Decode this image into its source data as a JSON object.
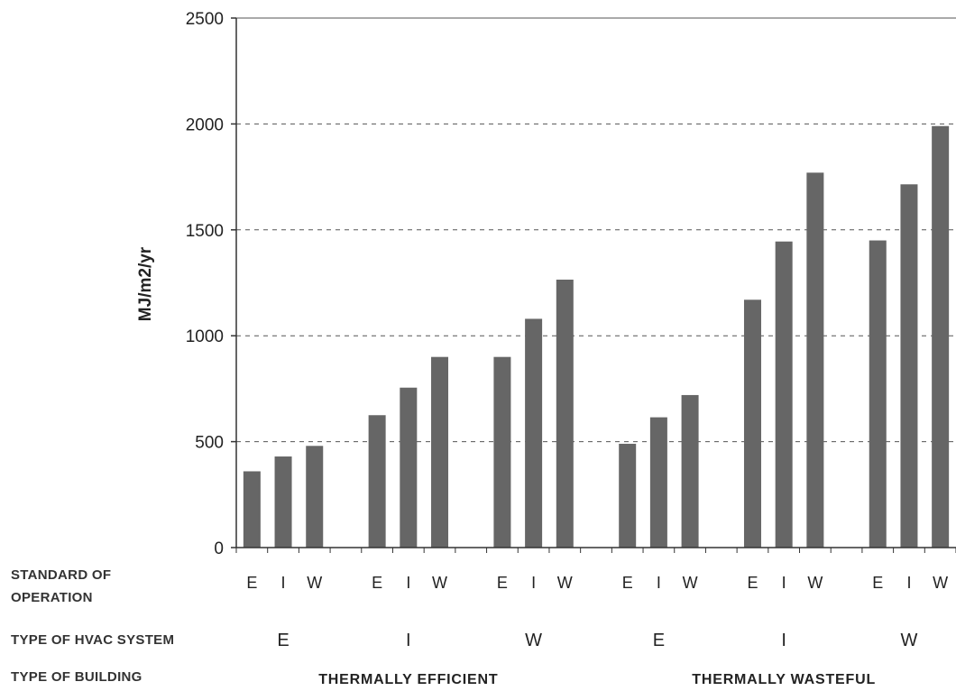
{
  "chart_data": {
    "type": "bar",
    "title": "",
    "ylabel": "MJ/m2/yr",
    "ylim": [
      0,
      2500
    ],
    "yticks": [
      0,
      500,
      1000,
      1500,
      2000,
      2500
    ],
    "grid": "horizontal dashed",
    "bar_color": "#666666",
    "row_labels": {
      "standard": [
        "STANDARD OF",
        "OPERATION"
      ],
      "hvac": "TYPE OF HVAC SYSTEM",
      "building": "TYPE OF BUILDING"
    },
    "categories": [
      "E",
      "I",
      "W",
      "E",
      "I",
      "W",
      "E",
      "I",
      "W",
      "E",
      "I",
      "W",
      "E",
      "I",
      "W",
      "E",
      "I",
      "W"
    ],
    "hvac_groups": [
      "E",
      "I",
      "W",
      "E",
      "I",
      "W"
    ],
    "building_groups": [
      "THERMALLY EFFICIENT",
      "THERMALLY WASTEFUL"
    ],
    "values": [
      360,
      430,
      480,
      625,
      755,
      900,
      900,
      1080,
      1265,
      490,
      615,
      720,
      1170,
      1445,
      1770,
      1450,
      1715,
      1990
    ]
  }
}
